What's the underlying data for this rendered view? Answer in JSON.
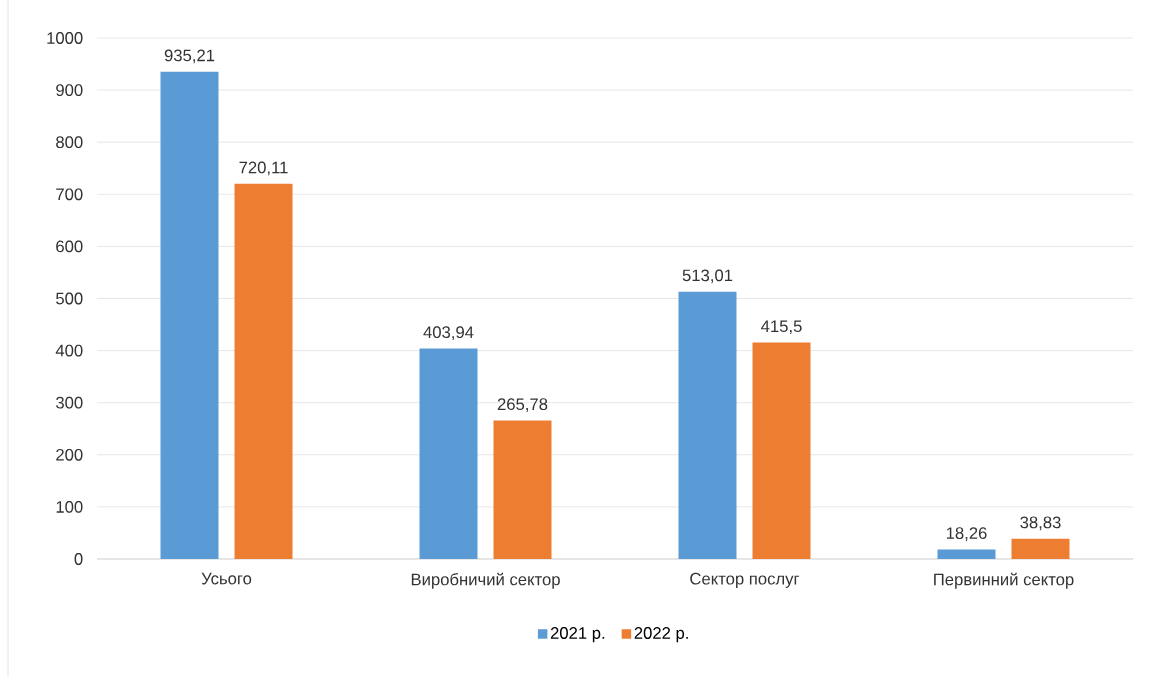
{
  "chart_data": {
    "type": "bar",
    "categories": [
      "Усього",
      "Виробничий сектор",
      "Сектор послуг",
      "Первинний сектор"
    ],
    "series": [
      {
        "name": "2021 р.",
        "color": "#5b9bd5",
        "values": [
          935.21,
          403.94,
          513.01,
          18.26
        ],
        "value_labels": [
          "935,21",
          "403,94",
          "513,01",
          "18,26"
        ]
      },
      {
        "name": "2022 р.",
        "color": "#ed7d31",
        "values": [
          720.11,
          265.78,
          415.5,
          38.83
        ],
        "value_labels": [
          "720,11",
          "265,78",
          "415,5",
          "38,83"
        ]
      }
    ],
    "ylim": [
      0,
      1000
    ],
    "yticks": [
      0,
      100,
      200,
      300,
      400,
      500,
      600,
      700,
      800,
      900,
      1000
    ],
    "grid": "y",
    "legend": "bottom"
  }
}
